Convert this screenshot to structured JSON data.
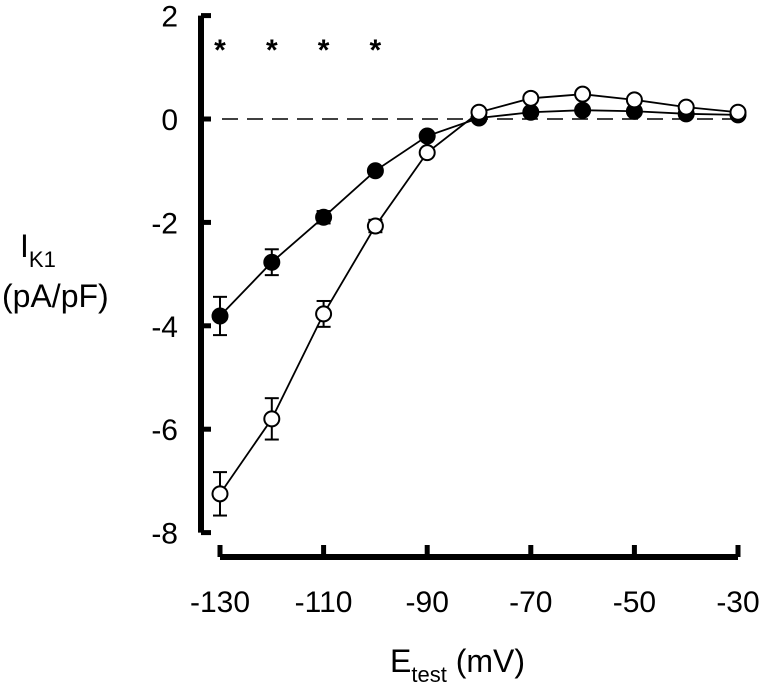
{
  "chart_data": {
    "type": "line",
    "title": "",
    "xlabel": "E_test (mV)",
    "xlabel_main": "E",
    "xlabel_sub": "test",
    "xlabel_unit": " (mV)",
    "ylabel_main": "I",
    "ylabel_sub": "K1",
    "ylabel_unit": "(pA/pF)",
    "xlim": [
      -130,
      -30
    ],
    "ylim": [
      -8,
      2
    ],
    "xticks": [
      -130,
      -110,
      -90,
      -70,
      -50,
      -30
    ],
    "yticks": [
      2,
      0,
      -2,
      -4,
      -6,
      -8
    ],
    "x": [
      -130,
      -120,
      -110,
      -100,
      -90,
      -80,
      -70,
      -60,
      -50,
      -40,
      -30
    ],
    "series": [
      {
        "name": "filled circles",
        "marker": "filled-circle",
        "values": [
          -3.81,
          -2.77,
          -1.9,
          -1.0,
          -0.33,
          0.02,
          0.13,
          0.17,
          0.15,
          0.1,
          0.08
        ],
        "errors": [
          0.37,
          0.25,
          0.12,
          0.06,
          0.05,
          0.03,
          0.03,
          0.03,
          0.03,
          0.03,
          0.03
        ]
      },
      {
        "name": "open circles",
        "marker": "open-circle",
        "values": [
          -7.25,
          -5.8,
          -3.77,
          -2.07,
          -0.65,
          0.13,
          0.4,
          0.48,
          0.37,
          0.23,
          0.13
        ],
        "errors": [
          0.42,
          0.4,
          0.25,
          0.12,
          0.06,
          0.03,
          0.03,
          0.03,
          0.03,
          0.03,
          0.03
        ]
      }
    ],
    "reference_line": {
      "y": 0,
      "style": "dashed"
    },
    "annotations": [
      {
        "text": "*",
        "x": -130
      },
      {
        "text": "*",
        "x": -120
      },
      {
        "text": "*",
        "x": -110
      },
      {
        "text": "*",
        "x": -100
      }
    ],
    "grid": false,
    "legend": null
  }
}
